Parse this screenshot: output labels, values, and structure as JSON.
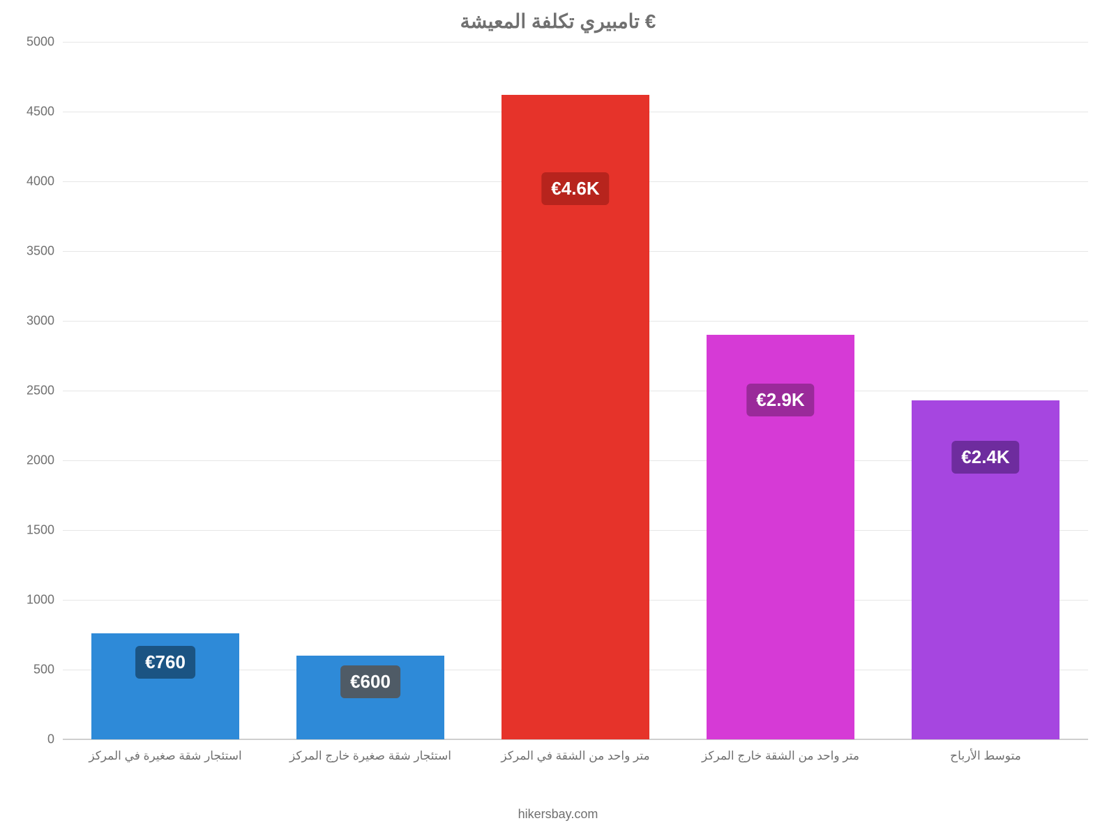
{
  "chart": {
    "type": "bar",
    "title": "تامبيري تكلفة المعيشة €",
    "title_fontsize": 28,
    "title_color": "#707070",
    "background_color": "#ffffff",
    "grid_color": "#e6e6e6",
    "axis_label_color": "#707070",
    "axis_label_fontsize": 18,
    "x_label_fontsize": 17,
    "value_label_fontsize": 26,
    "bar_width_pct": 72,
    "ylim": [
      0,
      5000
    ],
    "ytick_step": 500,
    "yticks": [
      "0",
      "500",
      "1000",
      "1500",
      "2000",
      "2500",
      "3000",
      "3500",
      "4000",
      "4500",
      "5000"
    ],
    "categories": [
      "استئجار شقة صغيرة في المركز",
      "استئجار شقة صغيرة خارج المركز",
      "متر واحد من الشقة في المركز",
      "متر واحد من الشقة خارج المركز",
      "متوسط الأرباح"
    ],
    "values": [
      760,
      600,
      4620,
      2900,
      2430
    ],
    "value_labels": [
      "€760",
      "€600",
      "€4.6K",
      "€2.9K",
      "€2.4K"
    ],
    "bar_colors": [
      "#2e8ad8",
      "#2e8ad8",
      "#e6332a",
      "#d63ad6",
      "#a646e0"
    ],
    "value_box_colors": [
      "#1b5483",
      "#4f5b66",
      "#b7241d",
      "#9a2a9a",
      "#6e2c9e"
    ],
    "attribution": "hikersbay.com"
  }
}
